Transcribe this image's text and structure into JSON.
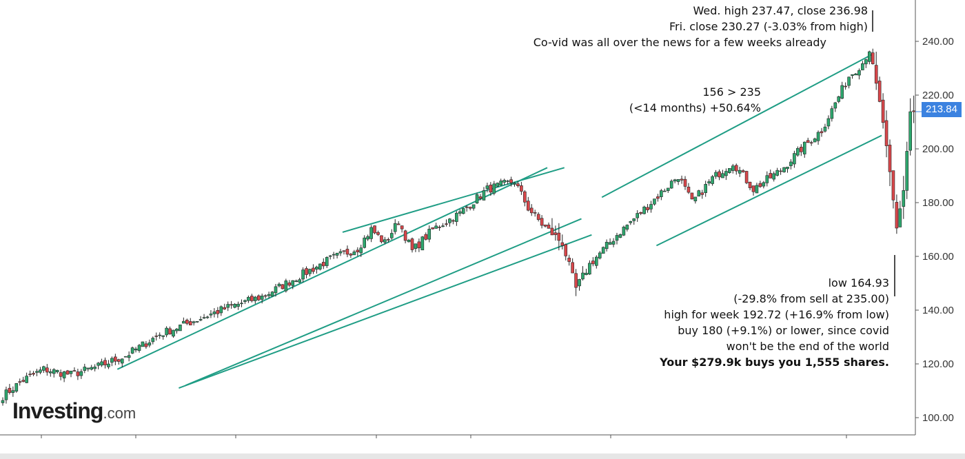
{
  "brand": {
    "name": "Investing",
    "tld": ".com"
  },
  "chart_data": {
    "type": "candlestick",
    "y_axis": {
      "ticks": [
        100,
        120,
        140,
        160,
        180,
        200,
        220,
        240
      ],
      "range": [
        95,
        248
      ],
      "side": "right"
    },
    "last_price": 213.84,
    "annotations": {
      "top": {
        "lines": [
          "Wed. high 237.47, close 236.98",
          "Fri. close 230.27 (-3.03% from high)",
          "Co-vid was all over the news for a few weeks already"
        ]
      },
      "gain": {
        "lines": [
          "156 > 235",
          "(<14 months) +50.64%"
        ]
      },
      "low": {
        "lines": [
          "low 164.93",
          "(-29.8% from sell at 235.00)",
          "high for week 192.72 (+16.9% from low)",
          "buy 180 (+9.1%) or lower, since covid",
          "won't be the end of the world"
        ],
        "bold_line": "Your $279.9k buys you 1,555 shares."
      }
    },
    "series_anchor_prices": [
      [
        0,
        108
      ],
      [
        6,
        114
      ],
      [
        12,
        118
      ],
      [
        20,
        116
      ],
      [
        28,
        119
      ],
      [
        36,
        123
      ],
      [
        46,
        131
      ],
      [
        56,
        136
      ],
      [
        66,
        141
      ],
      [
        76,
        145
      ],
      [
        86,
        152
      ],
      [
        96,
        159
      ],
      [
        104,
        163
      ],
      [
        108,
        170
      ],
      [
        112,
        165
      ],
      [
        116,
        173
      ],
      [
        120,
        162
      ],
      [
        126,
        170
      ],
      [
        134,
        176
      ],
      [
        142,
        185
      ],
      [
        150,
        188
      ],
      [
        154,
        178
      ],
      [
        158,
        172
      ],
      [
        164,
        165
      ],
      [
        168,
        148
      ],
      [
        172,
        157
      ],
      [
        180,
        168
      ],
      [
        190,
        180
      ],
      [
        198,
        190
      ],
      [
        202,
        180
      ],
      [
        208,
        189
      ],
      [
        214,
        195
      ],
      [
        220,
        185
      ],
      [
        228,
        192
      ],
      [
        234,
        200
      ],
      [
        240,
        207
      ],
      [
        248,
        227
      ],
      [
        252,
        232
      ],
      [
        254,
        237
      ],
      [
        258,
        210
      ],
      [
        262,
        170
      ],
      [
        264,
        185
      ],
      [
        266,
        213.84
      ]
    ],
    "trend_channels": [
      {
        "upper": [
          [
            34,
            118
          ],
          [
            160,
            193
          ]
        ],
        "lower": [
          [
            54,
            112
          ],
          [
            170,
            174
          ]
        ]
      },
      {
        "upper": [
          [
            100,
            169
          ],
          [
            165,
            193
          ]
        ],
        "lower": [
          [
            52,
            111
          ],
          [
            173,
            168
          ]
        ]
      },
      {
        "upper": [
          [
            176,
            182
          ],
          [
            255,
            235
          ]
        ],
        "lower": [
          [
            192,
            164
          ],
          [
            258,
            205
          ]
        ]
      }
    ]
  }
}
